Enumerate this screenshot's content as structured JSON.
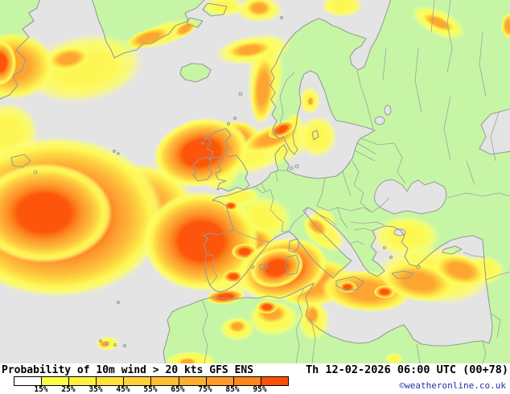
{
  "footer": {
    "title": "Probability of 10m wind > 20 kts GFS ENS",
    "valid_datetime": "Th 12-02-2026 06:00 UTC (00+78)",
    "copyright": "©weatheronline.co.uk"
  },
  "legend": {
    "tick_labels": [
      "15%",
      "25%",
      "35%",
      "45%",
      "55%",
      "65%",
      "75%",
      "85%",
      "95%"
    ],
    "segments": [
      {
        "range": "<15%",
        "color": "#FFFFFF"
      },
      {
        "range": "15-25%",
        "color": "#FFFF47"
      },
      {
        "range": "25-35%",
        "color": "#FFF23F"
      },
      {
        "range": "35-45%",
        "color": "#FFE23A"
      },
      {
        "range": "45-55%",
        "color": "#FFD136"
      },
      {
        "range": "55-65%",
        "color": "#FFBF32"
      },
      {
        "range": "65-75%",
        "color": "#FFAD2C"
      },
      {
        "range": "75-85%",
        "color": "#FF9B26"
      },
      {
        "range": "85-95%",
        "color": "#FF861A"
      },
      {
        "range": ">95%",
        "color": "#FF5004"
      }
    ]
  },
  "map": {
    "projection_area": "Europe and North Atlantic",
    "colors": {
      "sea": "#E4E4E4",
      "land": "#C6F6A5",
      "coastline": "#999999",
      "probability_low": "#FFF648",
      "probability_mid": "#FFA228",
      "probability_high": "#FF4E00"
    },
    "high_probability_regions": [
      "southwest North Atlantic",
      "mid Atlantic west of Ireland",
      "Bay of Biscay",
      "Skagerrak / Denmark",
      "northeast Spain and Balearic Sea",
      "western Mediterranean around Corsica and Sardinia",
      "central Mediterranean south of Sicily"
    ]
  }
}
